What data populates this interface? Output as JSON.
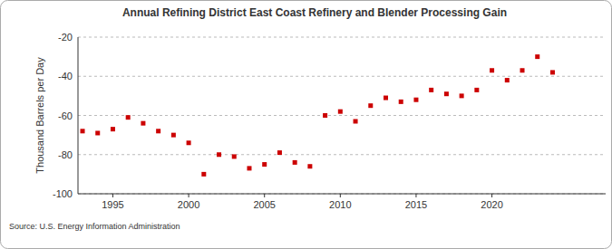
{
  "chart_data": {
    "type": "scatter",
    "title": "Annual Refining District East Coast Refinery and Blender Processing Gain",
    "y_label": "Thousand Barrels per Day",
    "source": "Source: U.S. Energy Information Administration",
    "x": [
      1993,
      1994,
      1995,
      1996,
      1997,
      1998,
      1999,
      2000,
      2001,
      2002,
      2003,
      2004,
      2005,
      2006,
      2007,
      2008,
      2009,
      2010,
      2011,
      2012,
      2013,
      2014,
      2015,
      2016,
      2017,
      2018,
      2019,
      2020,
      2021,
      2022,
      2023,
      2024
    ],
    "values": [
      -68,
      -69,
      -67,
      -61,
      -64,
      -68,
      -70,
      -74,
      -90,
      -80,
      -81,
      -87,
      -85,
      -79,
      -84,
      -86,
      -60,
      -58,
      -63,
      -55,
      -51,
      -53,
      -52,
      -47,
      -49,
      -50,
      -47,
      -37,
      -42,
      -37,
      -30,
      -38
    ],
    "color": "#cc0000",
    "marker": "square",
    "xlim": [
      1992.7,
      2027.5
    ],
    "xticks": [
      1995,
      2000,
      2005,
      2010,
      2015,
      2020
    ],
    "ylim": [
      -100,
      -20
    ],
    "yticks": [
      -100,
      -80,
      -60,
      -40,
      -20
    ],
    "grid": true
  }
}
